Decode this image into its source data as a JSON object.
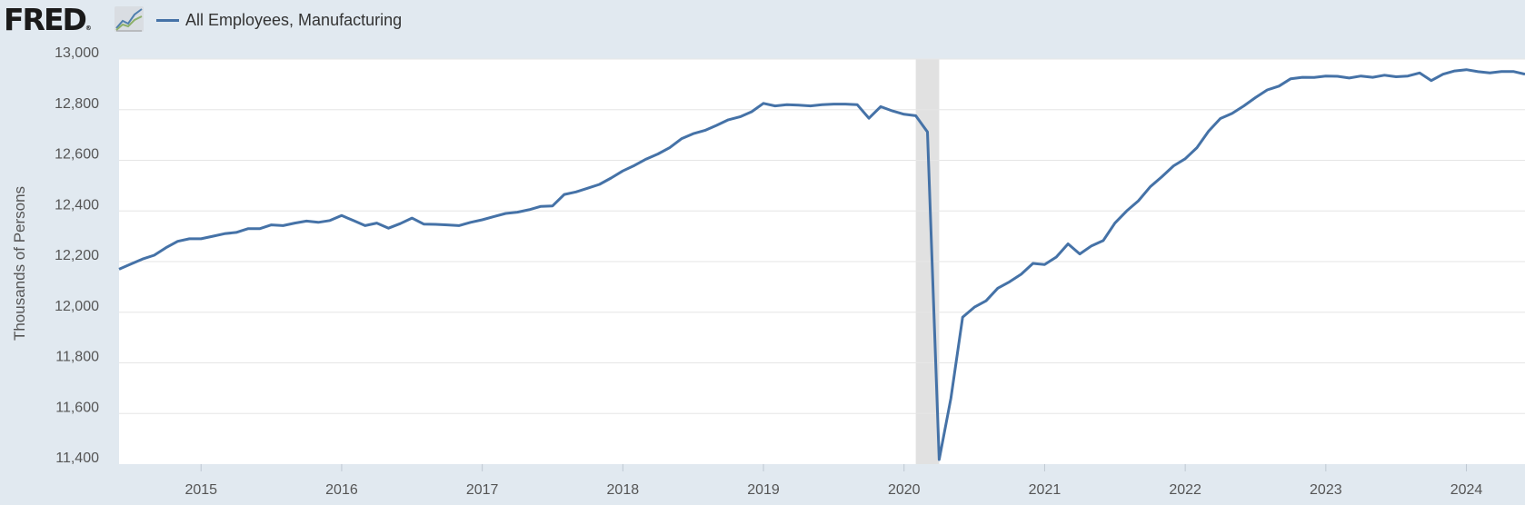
{
  "header": {
    "logo_text": "FRED",
    "logo_mark": "®",
    "icon": "line-chart-icon"
  },
  "legend": {
    "label": "All Employees, Manufacturing",
    "color": "#4572a7"
  },
  "chart_data": {
    "type": "line",
    "title": "",
    "xlabel": "",
    "ylabel": "Thousands of Persons",
    "series": [
      {
        "name": "All Employees, Manufacturing",
        "color": "#4572a7",
        "x": [
          "2014-06",
          "2014-07",
          "2014-08",
          "2014-09",
          "2014-10",
          "2014-11",
          "2014-12",
          "2015-01",
          "2015-02",
          "2015-03",
          "2015-04",
          "2015-05",
          "2015-06",
          "2015-07",
          "2015-08",
          "2015-09",
          "2015-10",
          "2015-11",
          "2015-12",
          "2016-01",
          "2016-02",
          "2016-03",
          "2016-04",
          "2016-05",
          "2016-06",
          "2016-07",
          "2016-08",
          "2016-09",
          "2016-10",
          "2016-11",
          "2016-12",
          "2017-01",
          "2017-02",
          "2017-03",
          "2017-04",
          "2017-05",
          "2017-06",
          "2017-07",
          "2017-08",
          "2017-09",
          "2017-10",
          "2017-11",
          "2017-12",
          "2018-01",
          "2018-02",
          "2018-03",
          "2018-04",
          "2018-05",
          "2018-06",
          "2018-07",
          "2018-08",
          "2018-09",
          "2018-10",
          "2018-11",
          "2018-12",
          "2019-01",
          "2019-02",
          "2019-03",
          "2019-04",
          "2019-05",
          "2019-06",
          "2019-07",
          "2019-08",
          "2019-09",
          "2019-10",
          "2019-11",
          "2019-12",
          "2020-01",
          "2020-02",
          "2020-03",
          "2020-04",
          "2020-05",
          "2020-06",
          "2020-07",
          "2020-08",
          "2020-09",
          "2020-10",
          "2020-11",
          "2020-12",
          "2021-01",
          "2021-02",
          "2021-03",
          "2021-04",
          "2021-05",
          "2021-06",
          "2021-07",
          "2021-08",
          "2021-09",
          "2021-10",
          "2021-11",
          "2021-12",
          "2022-01",
          "2022-02",
          "2022-03",
          "2022-04",
          "2022-05",
          "2022-06",
          "2022-07",
          "2022-08",
          "2022-09",
          "2022-10",
          "2022-11",
          "2022-12",
          "2023-01",
          "2023-02",
          "2023-03",
          "2023-04",
          "2023-05",
          "2023-06",
          "2023-07",
          "2023-08",
          "2023-09",
          "2023-10",
          "2023-11",
          "2023-12",
          "2024-01",
          "2024-02",
          "2024-03",
          "2024-04",
          "2024-05",
          "2024-06"
        ],
        "values": [
          12170,
          12190,
          12210,
          12225,
          12255,
          12280,
          12290,
          12290,
          12300,
          12310,
          12315,
          12330,
          12330,
          12345,
          12342,
          12352,
          12360,
          12355,
          12362,
          12382,
          12362,
          12342,
          12352,
          12332,
          12350,
          12372,
          12348,
          12347,
          12345,
          12342,
          12355,
          12365,
          12378,
          12390,
          12395,
          12405,
          12418,
          12420,
          12465,
          12475,
          12490,
          12505,
          12530,
          12558,
          12580,
          12605,
          12625,
          12650,
          12685,
          12705,
          12718,
          12738,
          12760,
          12772,
          12792,
          12825,
          12815,
          12820,
          12818,
          12815,
          12820,
          12822,
          12822,
          12820,
          12766,
          12812,
          12795,
          12782,
          12776,
          12712,
          11418,
          11660,
          11980,
          12020,
          12045,
          12095,
          12120,
          12150,
          12193,
          12188,
          12218,
          12270,
          12230,
          12262,
          12283,
          12352,
          12400,
          12440,
          12495,
          12535,
          12578,
          12606,
          12650,
          12715,
          12765,
          12785,
          12815,
          12848,
          12878,
          12893,
          12922,
          12928,
          12927,
          12933,
          12932,
          12925,
          12933,
          12928,
          12936,
          12930,
          12933,
          12945,
          12915,
          12940,
          12953,
          12958,
          12950,
          12945,
          12951,
          12951,
          12940
        ]
      }
    ],
    "ylim": [
      11400,
      13000
    ],
    "xlim": [
      "2014-06",
      "2024-06"
    ],
    "yticks": [
      "11,400",
      "11,600",
      "11,800",
      "12,000",
      "12,200",
      "12,400",
      "12,600",
      "12,800",
      "13,000"
    ],
    "ytick_values": [
      11400,
      11600,
      11800,
      12000,
      12200,
      12400,
      12600,
      12800,
      13000
    ],
    "xticks": [
      "2015",
      "2016",
      "2017",
      "2018",
      "2019",
      "2020",
      "2021",
      "2022",
      "2023",
      "2024"
    ],
    "recession_shading": [
      {
        "start": "2020-02",
        "end": "2020-04",
        "color": "#e1e1e1"
      }
    ],
    "grid": "horizontal",
    "legend_position": "top-left"
  }
}
